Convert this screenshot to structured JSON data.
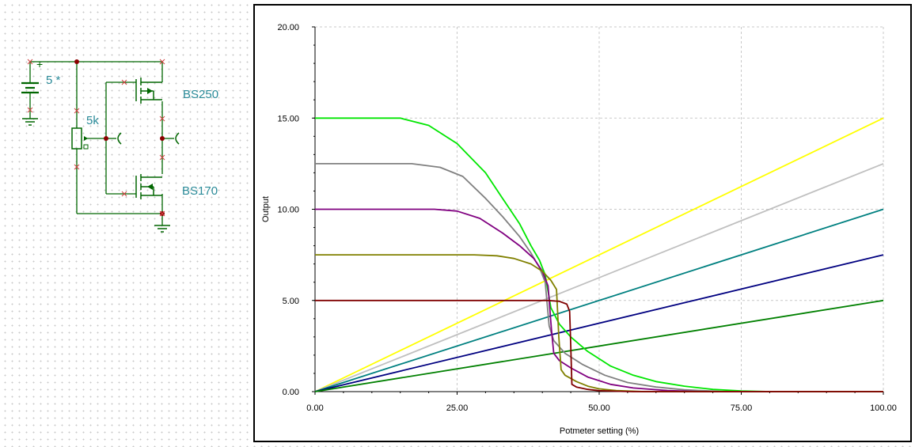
{
  "schematic": {
    "battery_label": "5 *",
    "pot_label": "5k",
    "pmos_label": "BS250",
    "nmos_label": "BS170",
    "plus_sign": "+",
    "wire_color": "#006600",
    "component_color": "#2a8a98",
    "junction_color": "#8b0000"
  },
  "chart_data": {
    "type": "line",
    "title": "",
    "xlabel": "Potmeter setting (%)",
    "ylabel": "Output",
    "xlim": [
      0,
      100
    ],
    "ylim": [
      0,
      20
    ],
    "x_ticks": [
      "0.00",
      "25.00",
      "50.00",
      "75.00",
      "100.00"
    ],
    "y_ticks": [
      "0.00",
      "5.00",
      "10.00",
      "15.00",
      "20.00"
    ],
    "grid": true,
    "series": [
      {
        "color": "#ffff00",
        "x": [
          0,
          100
        ],
        "y": [
          0,
          15
        ]
      },
      {
        "color": "#c0c0c0",
        "x": [
          0,
          100
        ],
        "y": [
          0,
          12.5
        ]
      },
      {
        "color": "#008080",
        "x": [
          0,
          100
        ],
        "y": [
          0,
          10
        ]
      },
      {
        "color": "#000080",
        "x": [
          0,
          100
        ],
        "y": [
          0,
          7.5
        ]
      },
      {
        "color": "#008000",
        "x": [
          0,
          100
        ],
        "y": [
          0,
          5
        ]
      },
      {
        "color": "#00e600",
        "x": [
          0,
          15,
          20,
          25,
          30,
          33,
          36,
          38,
          39.5,
          40.5,
          41.5,
          43,
          45,
          48,
          52,
          56,
          60,
          65,
          70,
          75,
          80,
          100
        ],
        "y": [
          15,
          15,
          14.6,
          13.6,
          12,
          10.6,
          9.2,
          8,
          7.2,
          6.4,
          4.6,
          3.7,
          3.0,
          2.2,
          1.4,
          0.9,
          0.55,
          0.3,
          0.12,
          0.04,
          0,
          0
        ]
      },
      {
        "color": "#808080",
        "x": [
          0,
          17,
          22,
          26,
          30,
          33,
          36,
          38,
          39.5,
          40.5,
          41.2,
          42,
          44,
          47,
          51,
          55,
          60,
          65,
          72,
          100
        ],
        "y": [
          12.5,
          12.5,
          12.3,
          11.8,
          10.6,
          9.6,
          8.5,
          7.6,
          6.8,
          6.0,
          3.6,
          2.8,
          2.1,
          1.5,
          0.9,
          0.5,
          0.25,
          0.1,
          0,
          0
        ]
      },
      {
        "color": "#800080",
        "x": [
          0,
          21,
          25,
          29,
          33,
          36,
          38.5,
          40,
          41,
          41.6,
          42,
          43,
          45,
          48,
          52,
          56,
          62,
          68,
          100
        ],
        "y": [
          10,
          10,
          9.9,
          9.5,
          8.7,
          8.0,
          7.3,
          6.6,
          5.8,
          3.4,
          2.1,
          1.7,
          1.3,
          0.8,
          0.4,
          0.2,
          0.06,
          0,
          0
        ]
      },
      {
        "color": "#808000",
        "x": [
          0,
          28,
          32,
          35,
          38,
          40,
          41.5,
          42.5,
          42.9,
          43.3,
          44,
          46,
          48,
          50,
          53,
          58,
          100
        ],
        "y": [
          7.5,
          7.5,
          7.45,
          7.3,
          7.0,
          6.6,
          6.1,
          5.6,
          3.0,
          1.2,
          0.9,
          0.55,
          0.3,
          0.15,
          0.06,
          0,
          0
        ]
      },
      {
        "color": "#800000",
        "x": [
          0,
          38,
          41,
          43,
          44.3,
          44.8,
          45,
          45.2,
          46,
          48,
          50,
          53,
          56,
          100
        ],
        "y": [
          5,
          5,
          5,
          4.95,
          4.8,
          4.4,
          2.5,
          0.4,
          0.25,
          0.12,
          0.05,
          0.02,
          0,
          0
        ]
      }
    ]
  }
}
